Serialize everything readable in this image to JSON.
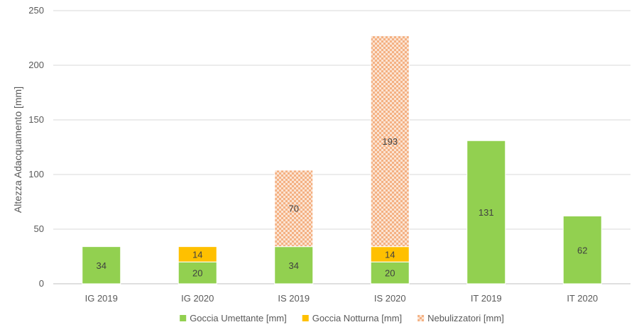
{
  "chart_data": {
    "type": "bar",
    "stacked": true,
    "title": "",
    "xlabel": "",
    "ylabel": "Altezza Adacquamento [mm]",
    "ylim": [
      0,
      250
    ],
    "yticks": [
      0,
      50,
      100,
      150,
      200,
      250
    ],
    "grid": true,
    "legend_position": "bottom",
    "categories": [
      "IG 2019",
      "IG 2020",
      "IS 2019",
      "IS 2020",
      "IT 2019",
      "IT 2020"
    ],
    "series": [
      {
        "name": "Goccia Umettante [mm]",
        "color": "#92d050",
        "pattern": "solid",
        "values": [
          34,
          20,
          34,
          20,
          131,
          62
        ],
        "labels": [
          "34",
          "20",
          "34",
          "20",
          "131",
          "62"
        ]
      },
      {
        "name": "Goccia Notturna [mm]",
        "color": "#ffc000",
        "pattern": "solid",
        "values": [
          0,
          14,
          0,
          14,
          0,
          0
        ],
        "labels": [
          "",
          "14",
          "",
          "14",
          "",
          ""
        ]
      },
      {
        "name": "Nebulizzatori [mm]",
        "color": "#f4b183",
        "pattern": "checker",
        "values": [
          0,
          0,
          70,
          193,
          0,
          0
        ],
        "labels": [
          "",
          "",
          "70",
          "193",
          "",
          ""
        ]
      }
    ]
  }
}
